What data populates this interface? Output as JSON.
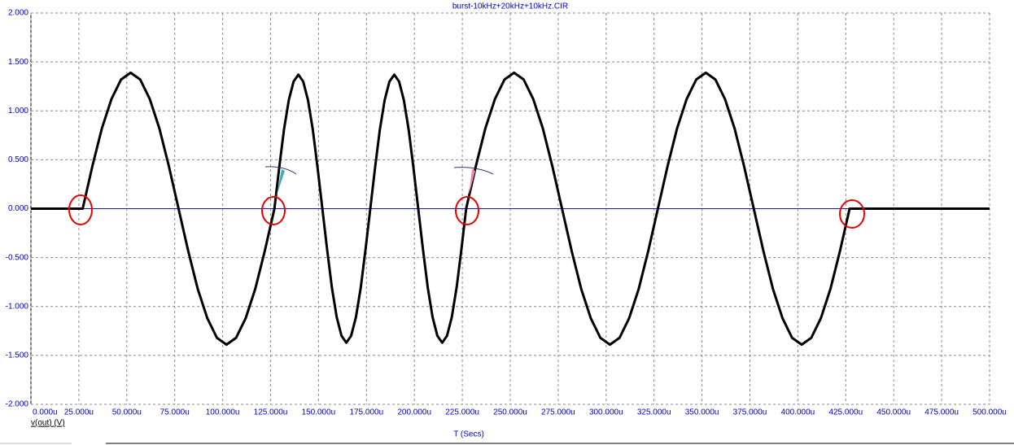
{
  "chart_data": {
    "type": "line",
    "title": "burst-10kHz+20kHz+10kHz.CIR",
    "x_label": "T (Secs)",
    "y_label": "v(out) (V)",
    "grid": true,
    "xlim": [
      0,
      500
    ],
    "ylim": [
      -2,
      2
    ],
    "xticks": [
      {
        "value": 0,
        "label": "0.000u"
      },
      {
        "value": 25,
        "label": "25.000u"
      },
      {
        "value": 50,
        "label": "50.000u"
      },
      {
        "value": 75,
        "label": "75.000u"
      },
      {
        "value": 100,
        "label": "100.000u"
      },
      {
        "value": 125,
        "label": "125.000u"
      },
      {
        "value": 150,
        "label": "150.000u"
      },
      {
        "value": 175,
        "label": "175.000u"
      },
      {
        "value": 200,
        "label": "200.000u"
      },
      {
        "value": 225,
        "label": "225.000u"
      },
      {
        "value": 250,
        "label": "250.000u"
      },
      {
        "value": 275,
        "label": "275.000u"
      },
      {
        "value": 300,
        "label": "300.000u"
      },
      {
        "value": 325,
        "label": "325.000u"
      },
      {
        "value": 350,
        "label": "350.000u"
      },
      {
        "value": 375,
        "label": "375.000u"
      },
      {
        "value": 400,
        "label": "400.000u"
      },
      {
        "value": 425,
        "label": "425.000u"
      },
      {
        "value": 450,
        "label": "450.000u"
      },
      {
        "value": 475,
        "label": "475.000u"
      },
      {
        "value": 500,
        "label": "500.000u"
      }
    ],
    "yticks": [
      {
        "value": 2,
        "label": "2.000"
      },
      {
        "value": 1.5,
        "label": "1.500"
      },
      {
        "value": 1,
        "label": "1.000"
      },
      {
        "value": 0.5,
        "label": "0.500"
      },
      {
        "value": 0,
        "label": "0.000"
      },
      {
        "value": -0.5,
        "label": "-0.500"
      },
      {
        "value": -1,
        "label": "-1.000"
      },
      {
        "value": -1.5,
        "label": "-1.500"
      },
      {
        "value": -2,
        "label": "-2.000"
      }
    ],
    "x": [
      0,
      25,
      27,
      32,
      37,
      42,
      47,
      52,
      57,
      62,
      67,
      72,
      77,
      82,
      87,
      92,
      97,
      102,
      107,
      112,
      117,
      122,
      127,
      129.5,
      132,
      134.5,
      137,
      139.5,
      142,
      144.5,
      147,
      149.5,
      152,
      154.5,
      157,
      159.5,
      162,
      164.5,
      167,
      169.5,
      172,
      174.5,
      177,
      179.5,
      182,
      184.5,
      187,
      189.5,
      192,
      194.5,
      197,
      199.5,
      202,
      204.5,
      207,
      209.5,
      212,
      214.5,
      217,
      219.5,
      222,
      224.5,
      227,
      232,
      237,
      242,
      247,
      252,
      257,
      262,
      267,
      272,
      277,
      282,
      287,
      292,
      297,
      302,
      307,
      312,
      317,
      322,
      327,
      332,
      337,
      342,
      347,
      352,
      357,
      362,
      367,
      372,
      377,
      382,
      387,
      392,
      397,
      402,
      407,
      412,
      417,
      422,
      427,
      500
    ],
    "series": [
      {
        "name": "v(out)",
        "color": "#000000",
        "values": [
          0,
          0,
          0,
          0.43,
          0.82,
          1.12,
          1.32,
          1.39,
          1.32,
          1.12,
          0.82,
          0.43,
          0,
          -0.43,
          -0.82,
          -1.12,
          -1.32,
          -1.39,
          -1.32,
          -1.12,
          -0.82,
          -0.43,
          0,
          0.42,
          0.81,
          1.11,
          1.3,
          1.37,
          1.3,
          1.11,
          0.81,
          0.42,
          0,
          -0.42,
          -0.81,
          -1.11,
          -1.3,
          -1.37,
          -1.3,
          -1.11,
          -0.81,
          -0.42,
          0,
          0.42,
          0.81,
          1.11,
          1.3,
          1.37,
          1.3,
          1.11,
          0.81,
          0.42,
          0,
          -0.42,
          -0.81,
          -1.11,
          -1.3,
          -1.37,
          -1.3,
          -1.11,
          -0.81,
          -0.42,
          0,
          0.43,
          0.82,
          1.12,
          1.32,
          1.39,
          1.32,
          1.12,
          0.82,
          0.43,
          0,
          -0.43,
          -0.82,
          -1.12,
          -1.32,
          -1.39,
          -1.32,
          -1.12,
          -0.82,
          -0.43,
          0,
          0.43,
          0.82,
          1.12,
          1.32,
          1.39,
          1.32,
          1.12,
          0.82,
          0.43,
          0,
          -0.43,
          -0.82,
          -1.12,
          -1.32,
          -1.39,
          -1.32,
          -1.12,
          -0.82,
          -0.43,
          0,
          0
        ]
      }
    ]
  }
}
